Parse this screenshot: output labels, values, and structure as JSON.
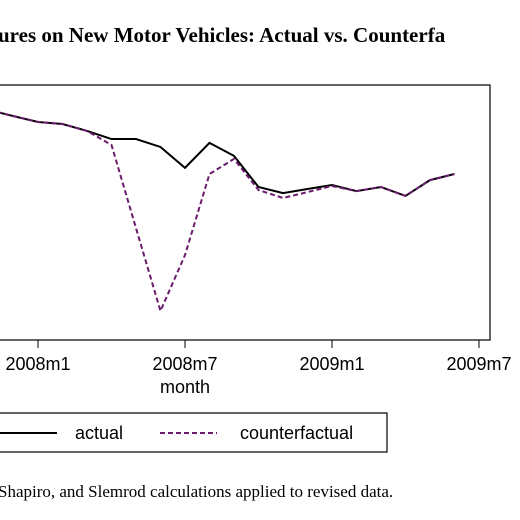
{
  "chart_data": {
    "type": "line",
    "title": "ures on New Motor Vehicles: Actual vs. Counterfa",
    "xlabel": "month",
    "note": "Shapiro, and Slemrod calculations applied to revised data.",
    "x": [
      -2,
      -1,
      0,
      1,
      2,
      3,
      4,
      5,
      6,
      7,
      8,
      9,
      10,
      11,
      12,
      13,
      14,
      15,
      16,
      17
    ],
    "xlim": [
      -3,
      18.45
    ],
    "xticks": [
      {
        "value": 0,
        "label": "2008m1"
      },
      {
        "value": 6,
        "label": "2008m7"
      },
      {
        "value": 12,
        "label": "2009m1"
      },
      {
        "value": 18,
        "label": "2009m7"
      }
    ],
    "ylim": [
      0,
      100
    ],
    "series": [
      {
        "name": "actual",
        "color": "#000000",
        "values": [
          90.2,
          87.8,
          85.5,
          84.7,
          82.0,
          78.8,
          78.8,
          75.7,
          67.5,
          77.3,
          72.2,
          60.0,
          57.6,
          59.2,
          60.8,
          58.4,
          60.0,
          56.5,
          62.7,
          65.1
        ]
      },
      {
        "name": "counterfactual",
        "color": "#6a1b6e",
        "dashed": true,
        "values": [
          90.2,
          87.8,
          85.5,
          84.7,
          82.0,
          76.5,
          43.9,
          11.4,
          33.3,
          65.1,
          71.0,
          58.8,
          55.7,
          58.0,
          60.4,
          58.4,
          60.0,
          56.5,
          62.7,
          65.1
        ]
      }
    ]
  }
}
